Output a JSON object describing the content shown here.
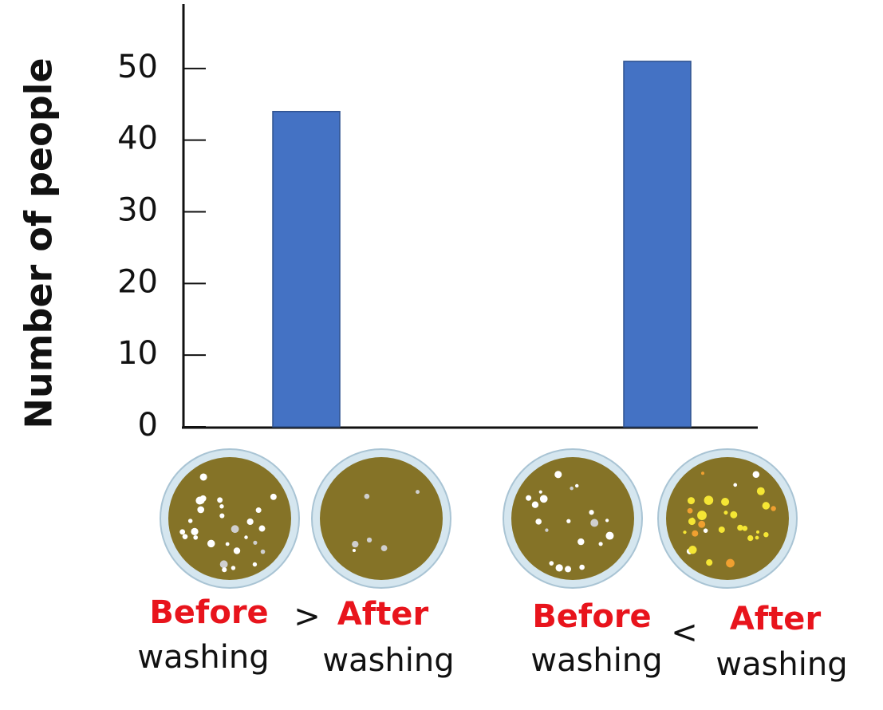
{
  "chart_data": {
    "type": "bar",
    "y_label": "Number of people",
    "categories": [
      {
        "before": "Before",
        "before_sub": "washing",
        "sign": ">",
        "after": "After",
        "after_sub": "washing"
      },
      {
        "before": "Before",
        "before_sub": "washing",
        "sign": "<",
        "after": "After",
        "after_sub": "washing"
      }
    ],
    "values": [
      44,
      51
    ],
    "color": "#4472c4",
    "ylim": [
      0,
      59
    ],
    "yticks": [
      0,
      10,
      20,
      30,
      40,
      50
    ],
    "grid": false
  }
}
